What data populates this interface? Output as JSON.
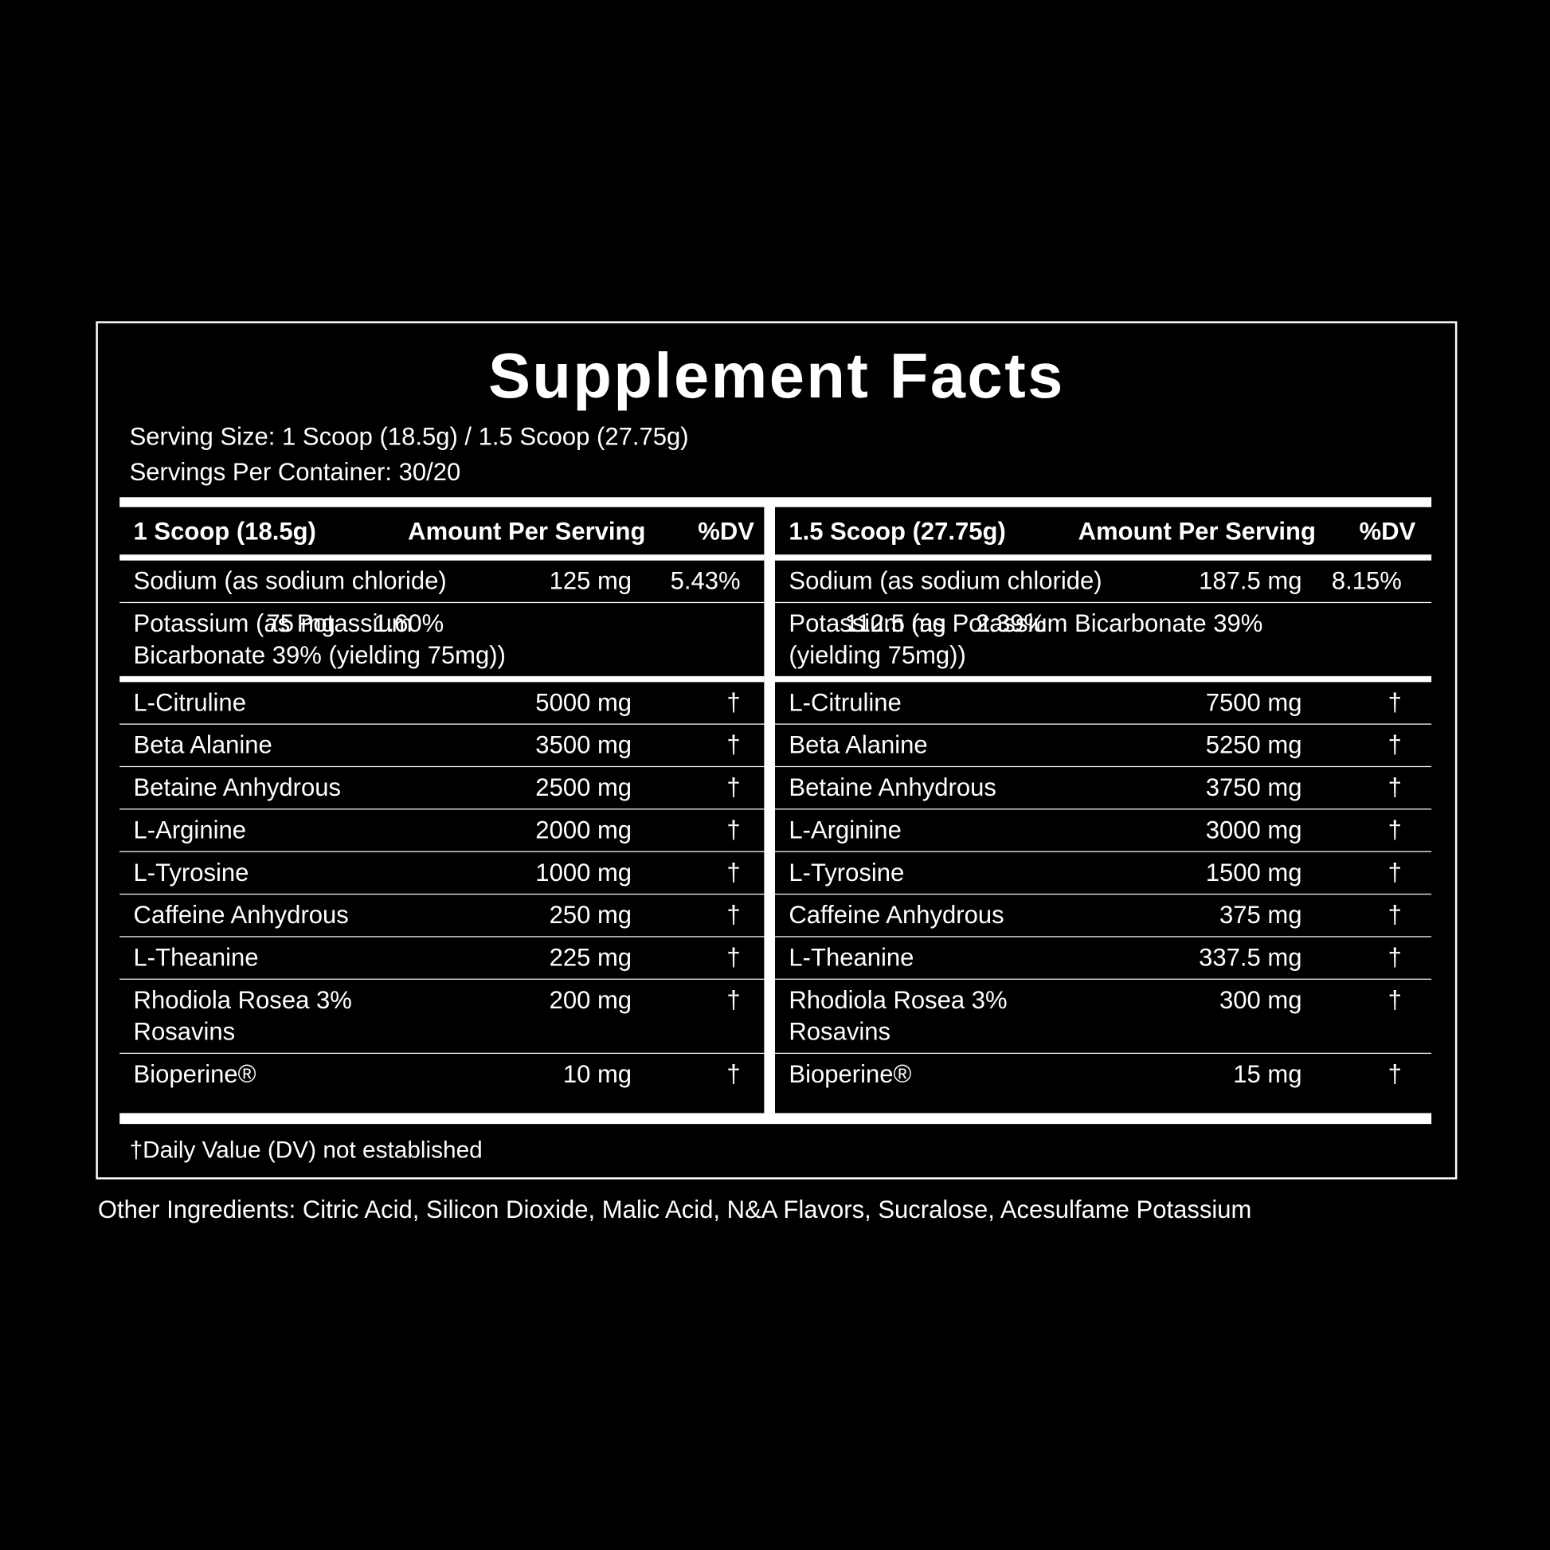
{
  "title": "Supplement Facts",
  "serving_size": "Serving Size: 1 Scoop (18.5g) / 1.5 Scoop (27.75g)",
  "servings_per_container": "Servings Per Container: 30/20",
  "panels": [
    {
      "header": [
        "1 Scoop (18.5g)",
        "Amount Per Serving",
        "%DV"
      ],
      "minerals": [
        [
          "Sodium (as sodium chloride)",
          "125 mg",
          "5.43%"
        ],
        [
          "Potassium (as Potassium Bicarbonate 39% (yielding 75mg))",
          "75 mg",
          "1.60%"
        ]
      ],
      "ingredients": [
        [
          "L-Citruline",
          "5000 mg",
          "†"
        ],
        [
          "Beta Alanine",
          "3500 mg",
          "†"
        ],
        [
          "Betaine Anhydrous",
          "2500 mg",
          "†"
        ],
        [
          "L-Arginine",
          "2000 mg",
          "†"
        ],
        [
          "L-Tyrosine",
          "1000 mg",
          "†"
        ],
        [
          "Caffeine Anhydrous",
          "250 mg",
          "†"
        ],
        [
          "L-Theanine",
          "225 mg",
          "†"
        ],
        [
          "Rhodiola Rosea 3% Rosavins",
          "200 mg",
          "†"
        ],
        [
          "Bioperine®",
          "10 mg",
          "†"
        ]
      ]
    },
    {
      "header": [
        "1.5 Scoop (27.75g)",
        "Amount Per Serving",
        "%DV"
      ],
      "minerals": [
        [
          "Sodium (as sodium chloride)",
          "187.5 mg",
          "8.15%"
        ],
        [
          "Potassium (as Potassium Bicarbonate 39% (yielding 75mg))",
          "112.5 mg",
          "2.39%"
        ]
      ],
      "ingredients": [
        [
          "L-Citruline",
          "7500 mg",
          "†"
        ],
        [
          "Beta Alanine",
          "5250 mg",
          "†"
        ],
        [
          "Betaine Anhydrous",
          "3750 mg",
          "†"
        ],
        [
          "L-Arginine",
          "3000 mg",
          "†"
        ],
        [
          "L-Tyrosine",
          "1500 mg",
          "†"
        ],
        [
          "Caffeine Anhydrous",
          "375 mg",
          "†"
        ],
        [
          "L-Theanine",
          "337.5 mg",
          "†"
        ],
        [
          "Rhodiola Rosea 3% Rosavins",
          "300 mg",
          "†"
        ],
        [
          "Bioperine®",
          "15 mg",
          "†"
        ]
      ]
    }
  ],
  "footnote": "†Daily Value (DV) not established",
  "other_ingredients": "Other Ingredients: Citric Acid, Silicon Dioxide, Malic Acid, N&A Flavors, Sucralose, Acesulfame Potassium"
}
